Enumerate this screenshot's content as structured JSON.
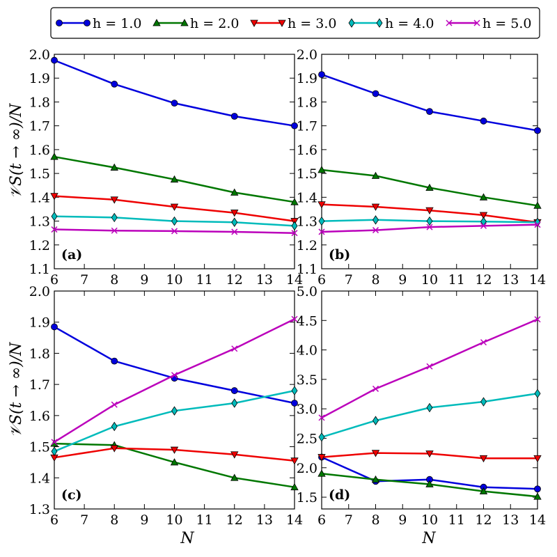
{
  "legend": {
    "entries": [
      "h = 1.0",
      "h = 2.0",
      "h = 3.0",
      "h = 4.0",
      "h = 5.0"
    ]
  },
  "ylabel": "𝒱S(t → ∞)/N",
  "xlabel": "N",
  "chart_data": [
    {
      "type": "line",
      "panel_label": "(a)",
      "x": [
        6,
        8,
        10,
        12,
        14
      ],
      "xlim": [
        6,
        14
      ],
      "xticks": [
        6,
        7,
        8,
        9,
        10,
        11,
        12,
        13,
        14
      ],
      "ylim": [
        1.1,
        2.0
      ],
      "yticks": [
        "1.1",
        "1.2",
        "1.3",
        "1.4",
        "1.5",
        "1.6",
        "1.7",
        "1.8",
        "1.9",
        "2.0"
      ],
      "series": [
        {
          "name": "h = 1.0",
          "values": [
            1.975,
            1.875,
            1.795,
            1.74,
            1.7
          ]
        },
        {
          "name": "h = 2.0",
          "values": [
            1.57,
            1.525,
            1.475,
            1.42,
            1.38
          ]
        },
        {
          "name": "h = 3.0",
          "values": [
            1.405,
            1.39,
            1.36,
            1.335,
            1.3
          ]
        },
        {
          "name": "h = 4.0",
          "values": [
            1.32,
            1.315,
            1.3,
            1.295,
            1.28
          ]
        },
        {
          "name": "h = 5.0",
          "values": [
            1.265,
            1.26,
            1.258,
            1.255,
            1.25
          ]
        }
      ]
    },
    {
      "type": "line",
      "panel_label": "(b)",
      "x": [
        6,
        8,
        10,
        12,
        14
      ],
      "xlim": [
        6,
        14
      ],
      "xticks": [
        6,
        7,
        8,
        9,
        10,
        11,
        12,
        13,
        14
      ],
      "ylim": [
        1.1,
        2.0
      ],
      "yticks": [
        "1.1",
        "1.2",
        "1.3",
        "1.4",
        "1.5",
        "1.6",
        "1.7",
        "1.8",
        "1.9",
        "2.0"
      ],
      "series": [
        {
          "name": "h = 1.0",
          "values": [
            1.915,
            1.835,
            1.76,
            1.72,
            1.68
          ]
        },
        {
          "name": "h = 2.0",
          "values": [
            1.515,
            1.49,
            1.44,
            1.4,
            1.365
          ]
        },
        {
          "name": "h = 3.0",
          "values": [
            1.37,
            1.36,
            1.345,
            1.325,
            1.295
          ]
        },
        {
          "name": "h = 4.0",
          "values": [
            1.3,
            1.305,
            1.3,
            1.298,
            1.295
          ]
        },
        {
          "name": "h = 5.0",
          "values": [
            1.255,
            1.262,
            1.275,
            1.28,
            1.285
          ]
        }
      ]
    },
    {
      "type": "line",
      "panel_label": "(c)",
      "x": [
        6,
        8,
        10,
        12,
        14
      ],
      "xlim": [
        6,
        14
      ],
      "xticks": [
        6,
        7,
        8,
        9,
        10,
        11,
        12,
        13,
        14
      ],
      "ylim": [
        1.3,
        2.0
      ],
      "yticks": [
        "1.3",
        "1.4",
        "1.5",
        "1.6",
        "1.7",
        "1.8",
        "1.9",
        "2.0"
      ],
      "series": [
        {
          "name": "h = 1.0",
          "values": [
            1.885,
            1.775,
            1.72,
            1.68,
            1.64
          ]
        },
        {
          "name": "h = 2.0",
          "values": [
            1.51,
            1.505,
            1.45,
            1.4,
            1.37
          ]
        },
        {
          "name": "h = 3.0",
          "values": [
            1.465,
            1.495,
            1.49,
            1.475,
            1.455
          ]
        },
        {
          "name": "h = 4.0",
          "values": [
            1.485,
            1.565,
            1.615,
            1.64,
            1.68
          ]
        },
        {
          "name": "h = 5.0",
          "values": [
            1.515,
            1.635,
            1.73,
            1.815,
            1.91
          ]
        }
      ]
    },
    {
      "type": "line",
      "panel_label": "(d)",
      "x": [
        6,
        8,
        10,
        12,
        14
      ],
      "xlim": [
        6,
        14
      ],
      "xticks": [
        6,
        7,
        8,
        9,
        10,
        11,
        12,
        13,
        14
      ],
      "ylim": [
        1.3,
        5.0
      ],
      "yticks": [
        "1.5",
        "2.0",
        "2.5",
        "3.0",
        "3.5",
        "4.0",
        "4.5",
        "5.0"
      ],
      "series": [
        {
          "name": "h = 1.0",
          "values": [
            2.18,
            1.77,
            1.8,
            1.67,
            1.64
          ]
        },
        {
          "name": "h = 2.0",
          "values": [
            1.9,
            1.8,
            1.72,
            1.6,
            1.51
          ]
        },
        {
          "name": "h = 3.0",
          "values": [
            2.18,
            2.25,
            2.24,
            2.16,
            2.16
          ]
        },
        {
          "name": "h = 4.0",
          "values": [
            2.52,
            2.8,
            3.02,
            3.12,
            3.26
          ]
        },
        {
          "name": "h = 5.0",
          "values": [
            2.85,
            3.34,
            3.72,
            4.13,
            4.52
          ]
        }
      ]
    }
  ],
  "styles": {
    "series": [
      {
        "color": "#0000dd",
        "marker": "circle"
      },
      {
        "color": "#007700",
        "marker": "triangle-up"
      },
      {
        "color": "#ee0000",
        "marker": "triangle-down"
      },
      {
        "color": "#00bbbb",
        "marker": "diamond"
      },
      {
        "color": "#bb00bb",
        "marker": "x"
      }
    ]
  }
}
